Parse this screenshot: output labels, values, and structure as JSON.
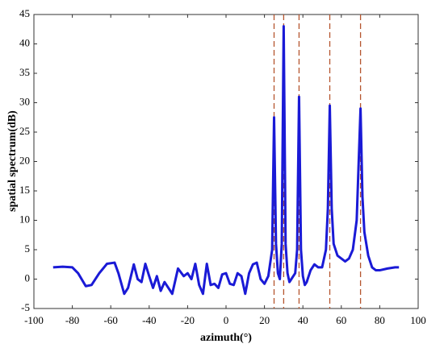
{
  "chart_data": {
    "type": "line",
    "xlabel": "azimuth(°)",
    "ylabel": "spatial spectrum(dB)",
    "x": [
      -90,
      -85,
      -80,
      -77,
      -73,
      -70,
      -66,
      -62,
      -58,
      -56,
      -53,
      -51,
      -48,
      -46,
      -44,
      -42,
      -40,
      -38,
      -36,
      -34,
      -32,
      -30,
      -28,
      -25,
      -22,
      -20,
      -18,
      -16,
      -14,
      -12,
      -10,
      -8,
      -6,
      -4,
      -2,
      0,
      2,
      4,
      6,
      8,
      10,
      12,
      14,
      16,
      18,
      20,
      22,
      24,
      25,
      26,
      27,
      28,
      29,
      30,
      31,
      32,
      33,
      34,
      35,
      36,
      37,
      38,
      39,
      40,
      41,
      42,
      44,
      46,
      48,
      50,
      52,
      53,
      54,
      55,
      56,
      58,
      60,
      62,
      64,
      66,
      68,
      70,
      71,
      72,
      74,
      76,
      78,
      80,
      84,
      88,
      90
    ],
    "series": [
      {
        "color": "#1a1ad6",
        "values": [
          2,
          2.1,
          2,
          1,
          -1.2,
          -1,
          1,
          2.6,
          2.8,
          1,
          -2.5,
          -1.5,
          2.5,
          0,
          -0.5,
          2.6,
          0.5,
          -1.5,
          0.5,
          -2,
          -0.5,
          -1.5,
          -2.5,
          1.8,
          0.5,
          1,
          0,
          2.6,
          -1,
          -2.5,
          2.6,
          -1,
          -0.8,
          -1.5,
          0.8,
          1,
          -0.8,
          -1,
          1,
          0.5,
          -2.5,
          1,
          2.5,
          2.8,
          0,
          -0.8,
          0.5,
          5,
          27.5,
          6,
          1,
          0,
          6,
          43,
          6,
          1,
          -0.5,
          0,
          0.5,
          1,
          5,
          31,
          5,
          0.5,
          -1,
          -0.5,
          1.5,
          2.5,
          2,
          2,
          5,
          12,
          29.5,
          12,
          6,
          4,
          3.5,
          3,
          3.5,
          5,
          10,
          29,
          14,
          8,
          4,
          2,
          1.5,
          1.5,
          1.8,
          2,
          2
        ]
      }
    ],
    "vlines": [
      25,
      30,
      38,
      54,
      70
    ],
    "vline_color": "#b5552e",
    "xlim": [
      -100,
      100
    ],
    "xticks": [
      -100,
      -80,
      -60,
      -40,
      -20,
      0,
      20,
      40,
      60,
      80,
      100
    ],
    "ylim": [
      -5,
      45
    ],
    "yticks": [
      -5,
      0,
      5,
      10,
      15,
      20,
      25,
      30,
      35,
      40,
      45
    ],
    "grid": false
  }
}
